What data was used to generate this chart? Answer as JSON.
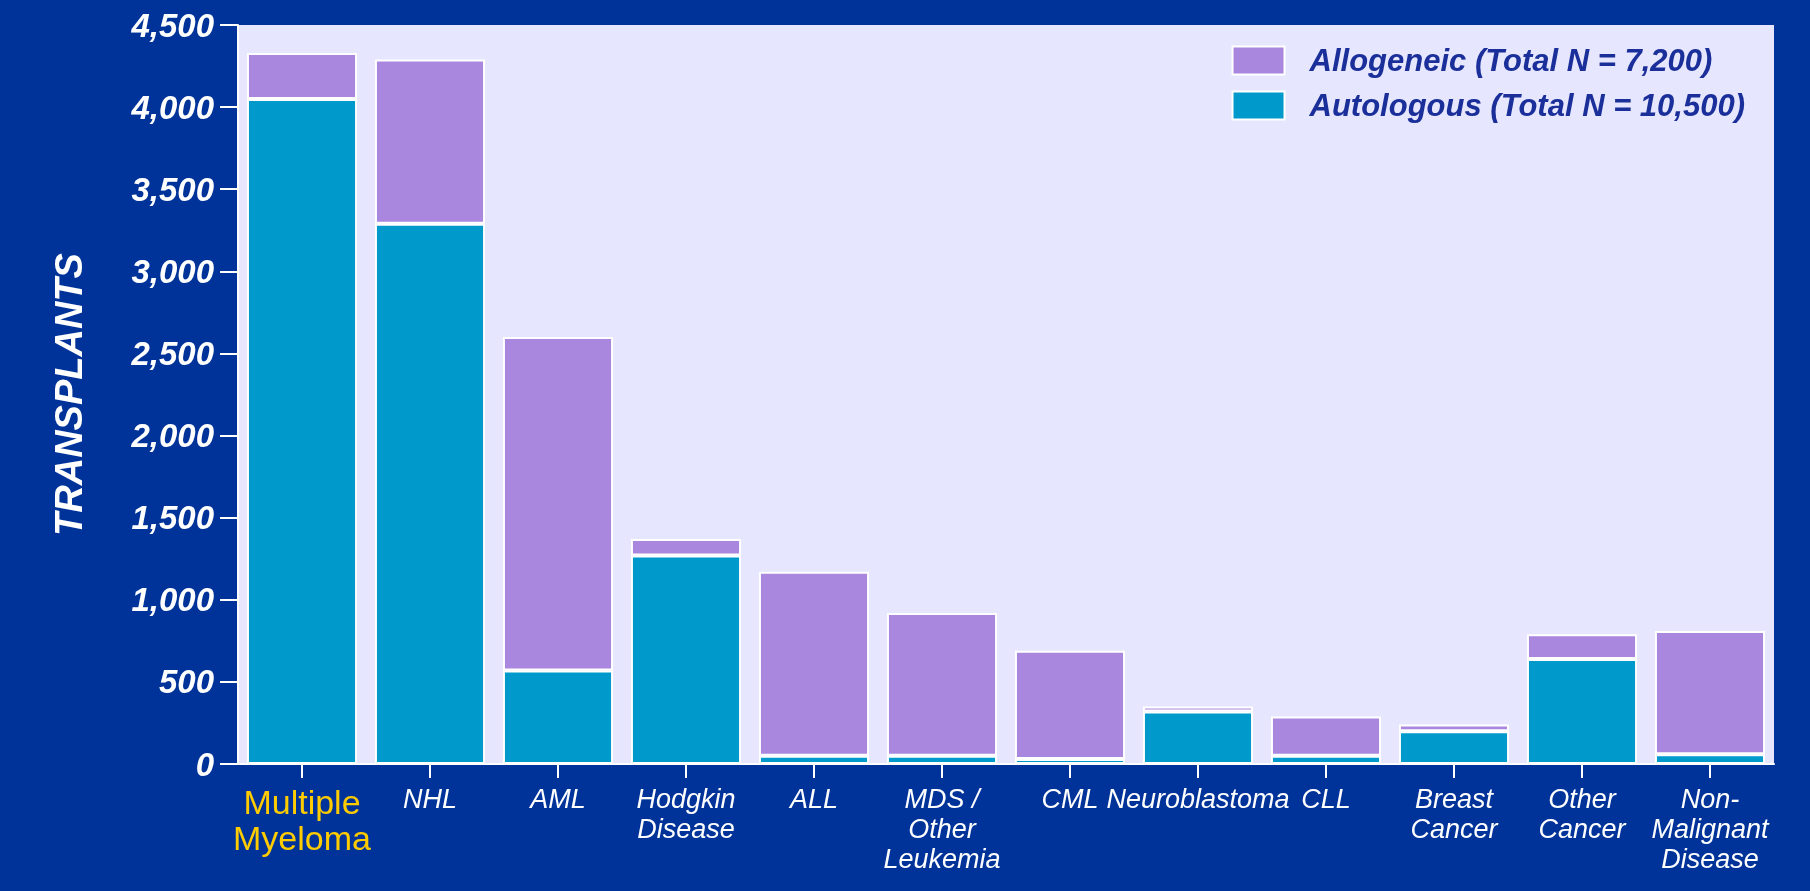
{
  "chart_data": {
    "type": "bar",
    "stacked": true,
    "categories": [
      "Multiple Myeloma",
      "NHL",
      "AML",
      "Hodgkin Disease",
      "ALL",
      "MDS / Other Leukemia",
      "CML",
      "Neuroblastoma",
      "CLL",
      "Breast Cancer",
      "Other Cancer",
      "Non-Malignant Disease"
    ],
    "series": [
      {
        "name": "Autologous (Total N = 10,500)",
        "color": "#0099cc",
        "values": [
          4050,
          3290,
          570,
          1270,
          50,
          50,
          30,
          320,
          50,
          200,
          640,
          60
        ]
      },
      {
        "name": "Allogeneic (Total N = 7,200)",
        "color": "#a987df",
        "values": [
          280,
          1000,
          2030,
          100,
          1120,
          870,
          660,
          30,
          240,
          40,
          150,
          750
        ]
      }
    ],
    "ylabel": "TRANSPLANTS",
    "ylim": [
      0,
      4500
    ],
    "yticks": [
      0,
      500,
      {
        "value": 1000,
        "label": "1,000"
      },
      {
        "value": 1500,
        "label": "1,500"
      },
      {
        "value": 2000,
        "label": "2,000"
      },
      {
        "value": 2500,
        "label": "2,500"
      },
      {
        "value": 3000,
        "label": "3,000"
      },
      {
        "value": 3500,
        "label": "3,500"
      },
      {
        "value": 4000,
        "label": "4,000"
      },
      {
        "value": 4500,
        "label": "4,500"
      }
    ],
    "grid": false,
    "legend": "top right"
  }
}
